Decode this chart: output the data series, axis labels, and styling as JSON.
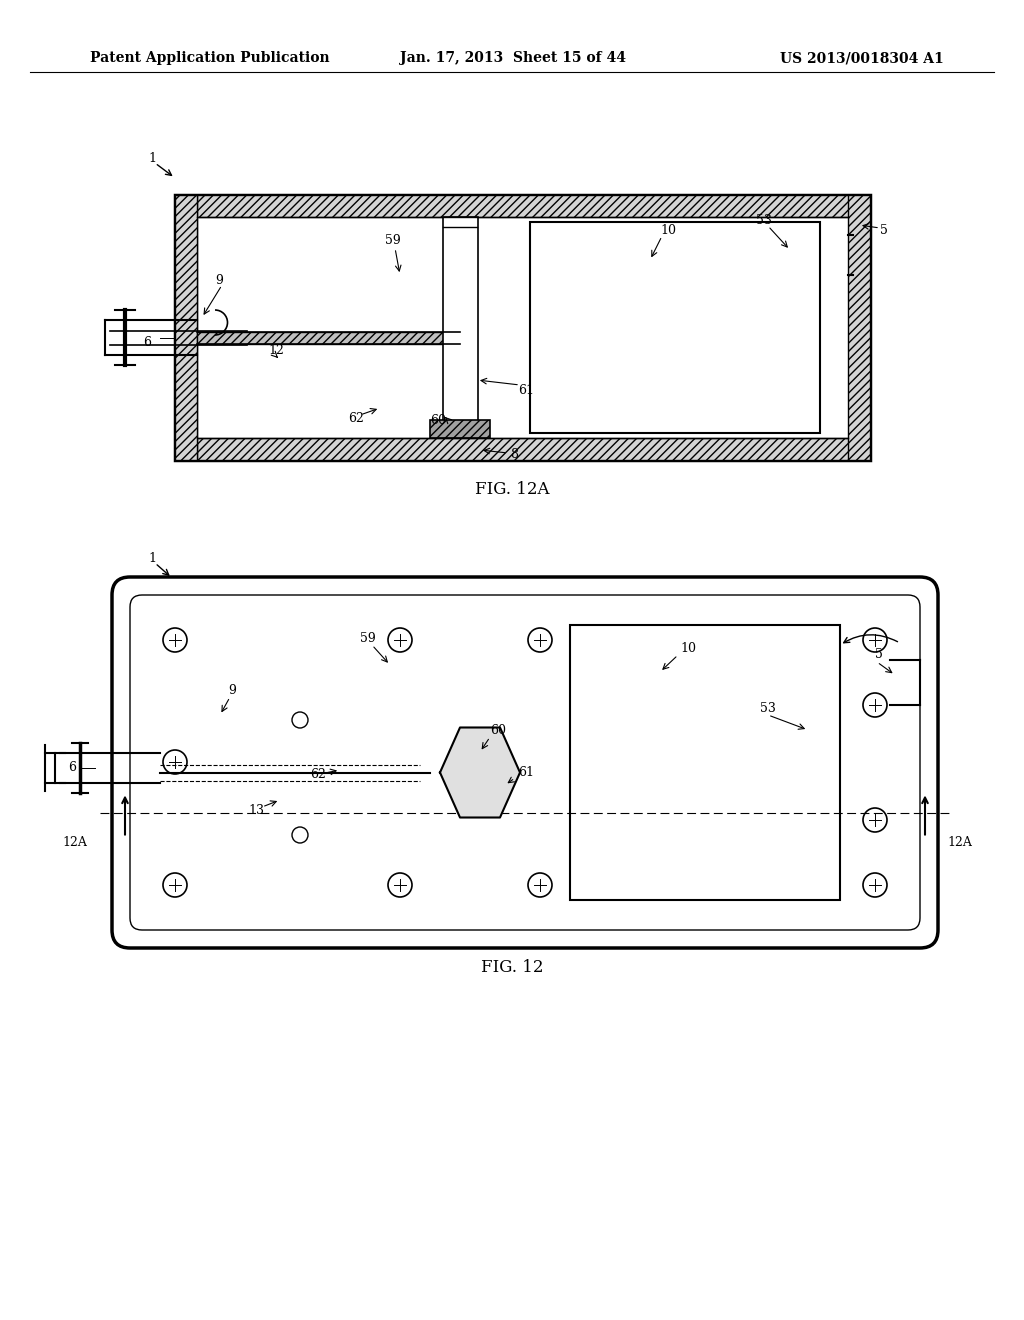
{
  "background_color": "#ffffff",
  "header_left": "Patent Application Publication",
  "header_middle": "Jan. 17, 2013  Sheet 15 of 44",
  "header_right": "US 2013/0018304 A1",
  "fig12a_label": "FIG. 12A",
  "fig12_label": "FIG. 12",
  "text_color": "#000000",
  "line_color": "#000000",
  "hatch_color": "#000000",
  "header_fontsize": 10,
  "label_fontsize": 12,
  "ref_fontsize": 9
}
